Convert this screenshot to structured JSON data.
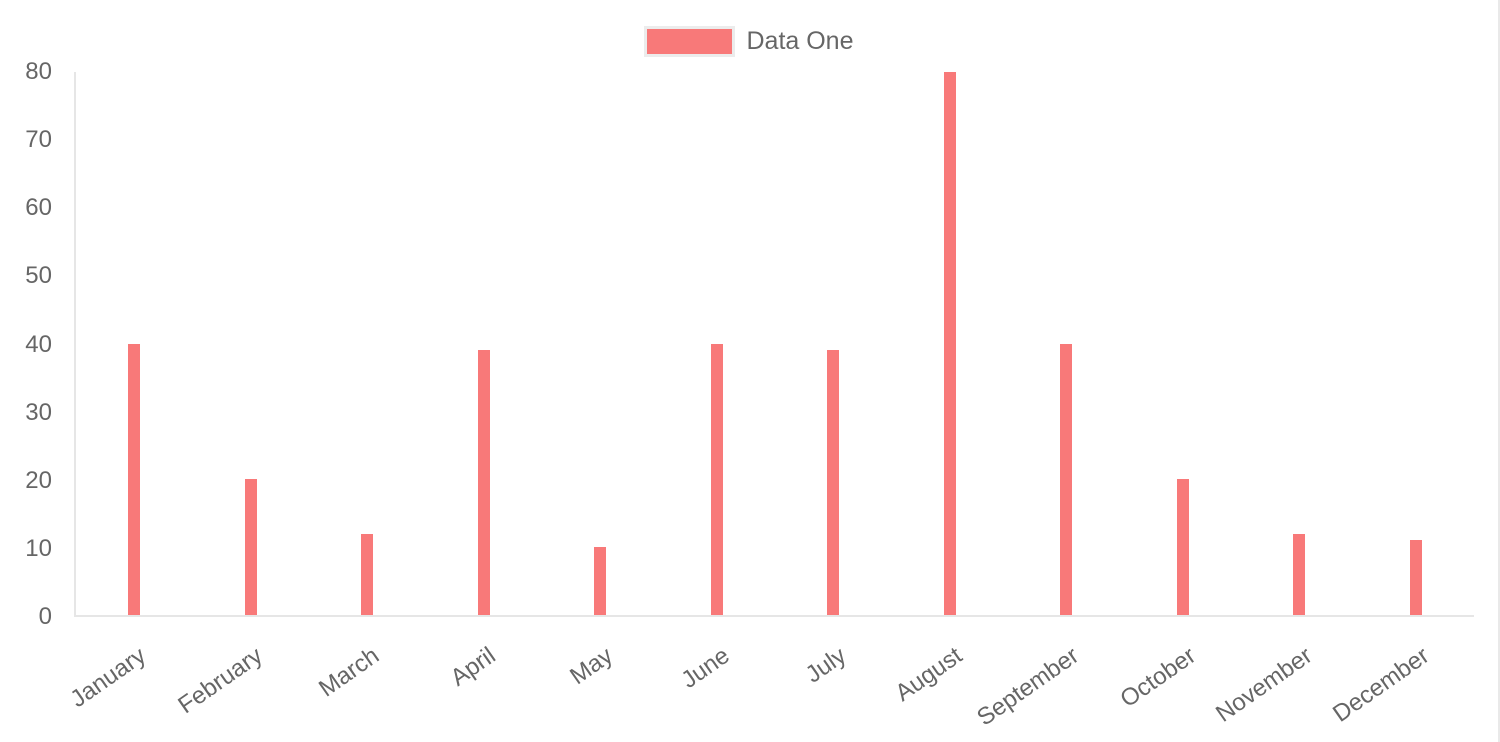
{
  "legend": {
    "position": "top",
    "items": [
      {
        "label": "Data One",
        "color": "#f87979"
      }
    ]
  },
  "chart_data": {
    "type": "bar",
    "title": "",
    "categories": [
      "January",
      "February",
      "March",
      "April",
      "May",
      "June",
      "July",
      "August",
      "September",
      "October",
      "November",
      "December"
    ],
    "series": [
      {
        "name": "Data One",
        "color": "#f87979",
        "values": [
          40,
          20,
          12,
          39,
          10,
          40,
          39,
          80,
          40,
          20,
          12,
          11
        ]
      }
    ],
    "xlabel": "",
    "ylabel": "",
    "ylim": [
      0,
      80
    ],
    "yticks": [
      0,
      10,
      20,
      30,
      40,
      50,
      60,
      70,
      80
    ],
    "grid": false,
    "legend_position": "top",
    "x_label_rotation_deg": 35,
    "colors": {
      "bar": "#f87979",
      "axis_line": "#e6e6e6",
      "tick_text": "#666666",
      "background": "#ffffff"
    }
  }
}
